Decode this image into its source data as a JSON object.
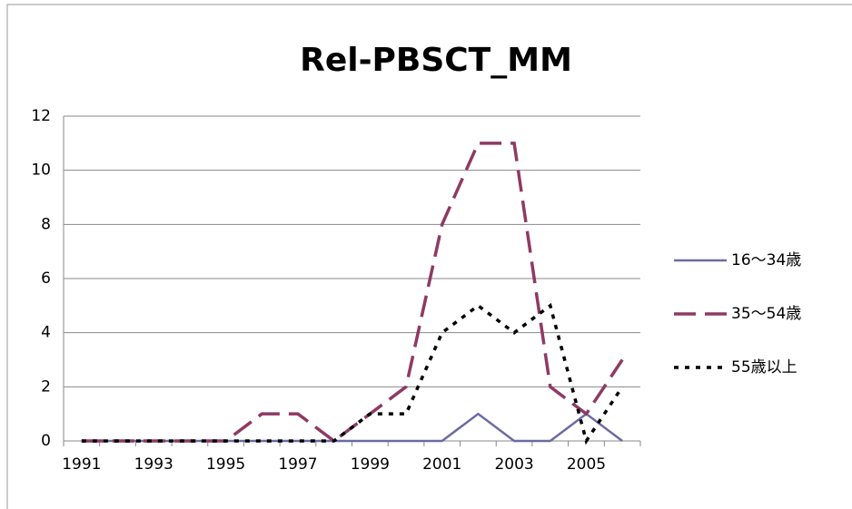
{
  "chart_data": {
    "type": "line",
    "title": "Rel-PBSCT_MM",
    "categories": [
      "1991",
      null,
      "1993",
      null,
      "1995",
      null,
      "1997",
      null,
      "1999",
      null,
      "2001",
      null,
      "2003",
      null,
      "2005",
      null
    ],
    "series": [
      {
        "name": "16～34歳",
        "color": "#6b6ba3",
        "dash": "solid",
        "values": [
          0,
          0,
          0,
          0,
          0,
          0,
          0,
          0,
          0,
          0,
          0,
          1,
          0,
          0,
          1,
          0
        ]
      },
      {
        "name": "35～54歳",
        "color": "#8e3a64",
        "dash": "dashed",
        "values": [
          0,
          0,
          0,
          0,
          0,
          1,
          1,
          0,
          1,
          2,
          8,
          11,
          11,
          2,
          1,
          3
        ]
      },
      {
        "name": "55歳以上",
        "color": "#000000",
        "dash": "dotted",
        "values": [
          0,
          0,
          0,
          0,
          0,
          0,
          0,
          0,
          1,
          1,
          4,
          5,
          4,
          5,
          0,
          2
        ]
      }
    ],
    "ylim": [
      0,
      12
    ],
    "yticks": [
      0,
      2,
      4,
      6,
      8,
      10,
      12
    ],
    "grid": true,
    "legend": "right"
  }
}
